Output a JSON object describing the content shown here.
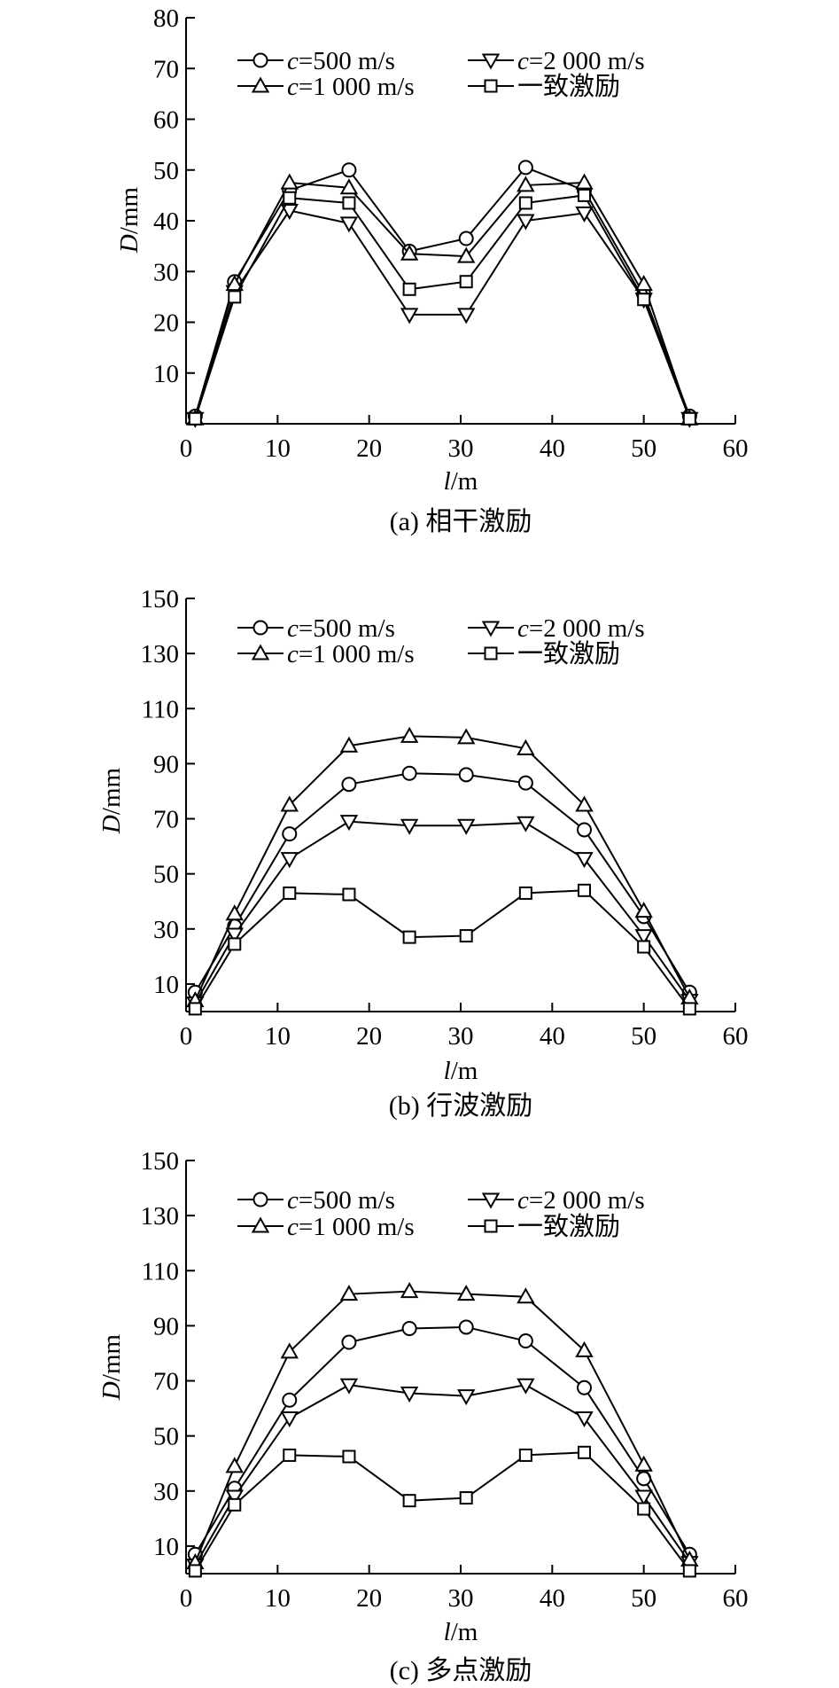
{
  "legend": {
    "c500": "=500 m/s",
    "c2000": "=2 000 m/s",
    "c1000": "=1 000 m/s",
    "uniform": "一致激励",
    "c_symbol": "c"
  },
  "axes": {
    "ylabel_var": "D",
    "ylabel_unit": "/mm",
    "xlabel_var": "l",
    "xlabel_unit": "/m"
  },
  "chart_data": [
    {
      "type": "line",
      "caption": "(a) 相干激励",
      "x": [
        1,
        5.3,
        11.3,
        17.8,
        24.4,
        30.6,
        37.1,
        43.5,
        50,
        55
      ],
      "xlim": [
        0,
        60
      ],
      "xticks": [
        0,
        10,
        20,
        30,
        40,
        50,
        60
      ],
      "ylim": [
        0,
        80
      ],
      "yticks": [
        10,
        20,
        30,
        40,
        50,
        60,
        70,
        80
      ],
      "series": [
        {
          "name": "c=500 m/s",
          "marker": "circle",
          "values": [
            1.5,
            28,
            46,
            50,
            34,
            36.5,
            50.5,
            46,
            25.5,
            1.5
          ]
        },
        {
          "name": "c=2 000 m/s",
          "marker": "triangle-down",
          "values": [
            1,
            26,
            42,
            39.5,
            21.5,
            21.5,
            40,
            41.5,
            24.5,
            1
          ]
        },
        {
          "name": "c=1 000 m/s",
          "marker": "triangle-up",
          "values": [
            1,
            27.5,
            47.5,
            46.5,
            33.5,
            33,
            47,
            47.5,
            27.5,
            1
          ]
        },
        {
          "name": "一致激励",
          "marker": "square",
          "values": [
            1,
            25,
            44.5,
            43.5,
            26.5,
            28,
            43.5,
            45,
            24.5,
            1
          ]
        }
      ]
    },
    {
      "type": "line",
      "caption": "(b) 行波激励",
      "x": [
        1,
        5.3,
        11.3,
        17.8,
        24.4,
        30.6,
        37.1,
        43.5,
        50,
        55
      ],
      "xlim": [
        0,
        60
      ],
      "xticks": [
        0,
        10,
        20,
        30,
        40,
        50,
        60
      ],
      "ylim": [
        0,
        150
      ],
      "yticks": [
        10,
        30,
        50,
        70,
        90,
        110,
        130,
        150
      ],
      "series": [
        {
          "name": "c=500 m/s",
          "marker": "circle",
          "values": [
            7,
            31,
            64.5,
            82.5,
            86.5,
            86,
            83,
            66,
            34.5,
            7
          ]
        },
        {
          "name": "c=2 000 m/s",
          "marker": "triangle-down",
          "values": [
            3,
            28,
            55.5,
            69,
            67.5,
            67.5,
            68.5,
            55.5,
            27.5,
            4
          ]
        },
        {
          "name": "c=1 000 m/s",
          "marker": "triangle-up",
          "values": [
            4,
            35.5,
            75,
            96.5,
            100,
            99.5,
            95.5,
            75,
            36.5,
            5
          ]
        },
        {
          "name": "一致激励",
          "marker": "square",
          "values": [
            1,
            24.5,
            43,
            42.5,
            27,
            27.5,
            43,
            44,
            23.5,
            1
          ]
        }
      ]
    },
    {
      "type": "line",
      "caption": "(c) 多点激励",
      "x": [
        1,
        5.3,
        11.3,
        17.8,
        24.4,
        30.6,
        37.1,
        43.5,
        50,
        55
      ],
      "xlim": [
        0,
        60
      ],
      "xticks": [
        0,
        10,
        20,
        30,
        40,
        50,
        60
      ],
      "ylim": [
        0,
        150
      ],
      "yticks": [
        10,
        30,
        50,
        70,
        90,
        110,
        130,
        150
      ],
      "series": [
        {
          "name": "c=500 m/s",
          "marker": "circle",
          "values": [
            7,
            31,
            63,
            84,
            89,
            89.5,
            84.5,
            67.5,
            34.5,
            7
          ]
        },
        {
          "name": "c=2 000 m/s",
          "marker": "triangle-down",
          "values": [
            3,
            28,
            56.5,
            68.5,
            65.5,
            64.5,
            68.5,
            56.5,
            28,
            4
          ]
        },
        {
          "name": "c=1 000 m/s",
          "marker": "triangle-up",
          "values": [
            4,
            39,
            80.5,
            101.5,
            102.5,
            101.5,
            100.5,
            81,
            39.5,
            5
          ]
        },
        {
          "name": "一致激励",
          "marker": "square",
          "values": [
            1,
            25,
            43,
            42.5,
            26.5,
            27.5,
            43,
            44,
            23.5,
            1
          ]
        }
      ]
    }
  ]
}
